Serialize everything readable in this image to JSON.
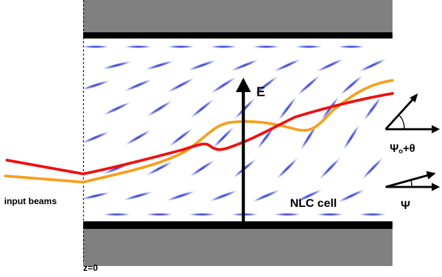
{
  "labels": {
    "input_beams": "input beams",
    "nlc_cell": "NLC cell",
    "z0": "z=0",
    "field": "E",
    "psi0_base": "Ψ",
    "psi0_sub": "o",
    "psi0_suffix": "+θ",
    "psi": "Ψ"
  },
  "colors": {
    "beam_red": "#ee1111",
    "beam_orange": "#f5a020",
    "molecule": "#3b46d6",
    "electrode": "#000000",
    "glass": "#808080"
  }
}
